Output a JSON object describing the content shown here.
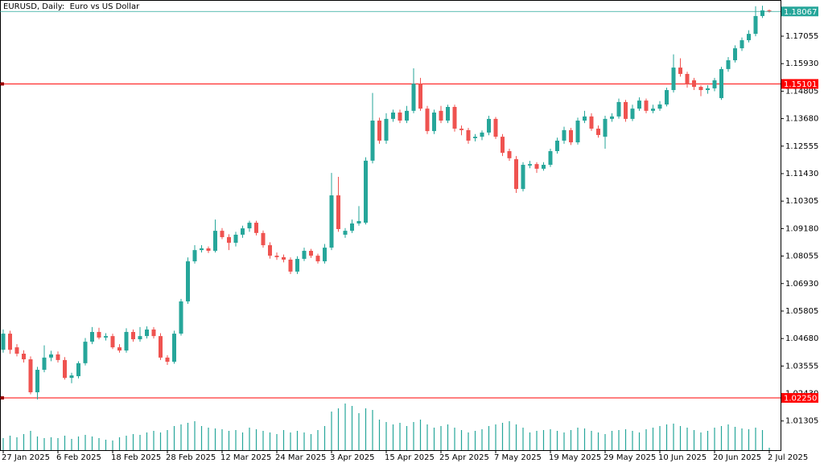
{
  "chart_data": {
    "type": "candlestick",
    "title": "EURUSD, Daily:  Euro vs US Dollar",
    "categories": [
      "27 Jan 2025",
      null,
      null,
      null,
      null,
      null,
      null,
      null,
      "6 Feb 2025",
      null,
      null,
      null,
      null,
      null,
      null,
      null,
      "18 Feb 2025",
      null,
      null,
      null,
      null,
      null,
      null,
      null,
      "28 Feb 2025",
      null,
      null,
      null,
      null,
      null,
      null,
      null,
      "12 Mar 2025",
      null,
      null,
      null,
      null,
      null,
      null,
      null,
      "24 Mar 2025",
      null,
      null,
      null,
      null,
      null,
      null,
      null,
      "3 Apr 2025",
      null,
      null,
      null,
      null,
      null,
      null,
      null,
      "15 Apr 2025",
      null,
      null,
      null,
      null,
      null,
      null,
      null,
      "25 Apr 2025",
      null,
      null,
      null,
      null,
      null,
      null,
      null,
      "7 May 2025",
      null,
      null,
      null,
      null,
      null,
      null,
      null,
      "19 May 2025",
      null,
      null,
      null,
      null,
      null,
      null,
      null,
      "29 May 2025",
      null,
      null,
      null,
      null,
      null,
      null,
      null,
      "10 Jun 2025",
      null,
      null,
      null,
      null,
      null,
      null,
      null,
      "20 Jun 2025",
      null,
      null,
      null,
      null,
      null,
      null,
      null,
      "2 Jul 2025"
    ],
    "open": [
      1.0422,
      1.0488,
      1.0432,
      1.0406,
      1.0383,
      1.0248,
      1.034,
      1.039,
      1.0403,
      1.038,
      1.0307,
      1.0314,
      1.0367,
      1.0455,
      1.0495,
      1.0472,
      1.0478,
      1.0432,
      1.0419,
      1.0495,
      1.0465,
      1.0478,
      1.0505,
      1.0478,
      1.039,
      1.0373,
      1.0488,
      1.062,
      1.0784,
      1.083,
      1.0837,
      1.0827,
      1.0909,
      1.0883,
      1.086,
      1.0893,
      1.0919,
      1.0942,
      1.09,
      1.085,
      1.0807,
      1.0801,
      1.0791,
      1.0742,
      1.0794,
      1.0827,
      1.0807,
      1.0784,
      1.084,
      1.1054,
      1.0893,
      1.0909,
      1.0939,
      1.0942,
      1.1196,
      1.136,
      1.1278,
      1.1367,
      1.1393,
      1.136,
      1.14,
      1.1511,
      1.1409,
      1.1317,
      1.14,
      1.136,
      1.1416,
      1.1327,
      1.1321,
      1.1288,
      1.1294,
      1.1311,
      1.1367,
      1.1294,
      1.1235,
      1.1202,
      1.108,
      1.1176,
      1.1182,
      1.1163,
      1.1179,
      1.1235,
      1.1278,
      1.1321,
      1.1271,
      1.136,
      1.1377,
      1.1327,
      1.1294,
      1.1367,
      1.1377,
      1.1436,
      1.1367,
      1.1409,
      1.1442,
      1.14,
      1.1409,
      1.1426,
      1.1485,
      1.1577,
      1.1551,
      1.1525,
      1.1498,
      1.1485,
      1.1492,
      1.1452,
      1.1571,
      1.1607,
      1.1656,
      1.1689,
      1.1715,
      1.1788,
      1.1811
    ],
    "high": [
      1.0505,
      1.05,
      1.0445,
      1.042,
      1.0395,
      1.0352,
      1.044,
      1.0418,
      1.0415,
      1.0392,
      1.0328,
      1.0375,
      1.047,
      1.0515,
      1.0512,
      1.049,
      1.0488,
      1.0445,
      1.051,
      1.0505,
      1.0515,
      1.0518,
      1.0515,
      1.049,
      1.04,
      1.05,
      1.063,
      1.08,
      1.085,
      1.085,
      1.0845,
      1.0955,
      1.092,
      1.0895,
      1.0905,
      1.093,
      1.095,
      1.095,
      1.091,
      1.0862,
      1.082,
      1.0812,
      1.08,
      1.0805,
      1.084,
      1.0835,
      1.0815,
      1.0855,
      1.1146,
      1.113,
      1.092,
      1.0955,
      1.101,
      1.121,
      1.1473,
      1.1372,
      1.139,
      1.1405,
      1.1405,
      1.142,
      1.1574,
      1.1535,
      1.142,
      1.1405,
      1.142,
      1.1425,
      1.1425,
      1.134,
      1.133,
      1.1305,
      1.132,
      1.138,
      1.1375,
      1.1305,
      1.1245,
      1.1215,
      1.119,
      1.1195,
      1.119,
      1.119,
      1.1245,
      1.129,
      1.1335,
      1.133,
      1.1372,
      1.14,
      1.139,
      1.134,
      1.138,
      1.139,
      1.145,
      1.1445,
      1.1425,
      1.1455,
      1.145,
      1.1425,
      1.144,
      1.1495,
      1.1631,
      1.1615,
      1.156,
      1.1535,
      1.1505,
      1.1505,
      1.1535,
      1.158,
      1.162,
      1.1668,
      1.17,
      1.173,
      1.1828,
      1.183,
      1.1815
    ],
    "low": [
      1.041,
      1.0405,
      1.0395,
      1.037,
      1.024,
      1.0219,
      1.033,
      1.0375,
      1.037,
      1.03,
      1.0285,
      1.0305,
      1.0358,
      1.0445,
      1.0465,
      1.046,
      1.0425,
      1.041,
      1.041,
      1.0455,
      1.0455,
      1.0468,
      1.0468,
      1.038,
      1.036,
      1.0365,
      1.048,
      1.061,
      1.0775,
      1.082,
      1.0818,
      1.082,
      1.0875,
      1.083,
      1.0845,
      1.088,
      1.0905,
      1.089,
      1.084,
      1.0795,
      1.079,
      1.078,
      1.0732,
      1.0732,
      1.0785,
      1.0798,
      1.0775,
      1.0775,
      1.083,
      1.0905,
      1.088,
      1.09,
      1.093,
      1.0935,
      1.1185,
      1.1265,
      1.1265,
      1.1355,
      1.135,
      1.135,
      1.139,
      1.14,
      1.1305,
      1.1305,
      1.135,
      1.135,
      1.1315,
      1.13,
      1.1265,
      1.1275,
      1.128,
      1.13,
      1.1285,
      1.1215,
      1.1195,
      1.1064,
      1.107,
      1.1165,
      1.1146,
      1.1155,
      1.117,
      1.1225,
      1.1265,
      1.126,
      1.1262,
      1.135,
      1.1318,
      1.129,
      1.1245,
      1.1355,
      1.1368,
      1.1355,
      1.1358,
      1.14,
      1.139,
      1.139,
      1.14,
      1.1418,
      1.1475,
      1.154,
      1.1495,
      1.1485,
      1.146,
      1.147,
      1.148,
      1.1445,
      1.156,
      1.1598,
      1.1645,
      1.168,
      1.1705,
      1.178,
      1.1802
    ],
    "close": [
      1.0488,
      1.0422,
      1.0406,
      1.0383,
      1.0248,
      1.034,
      1.039,
      1.0403,
      1.038,
      1.0307,
      1.0317,
      1.0367,
      1.0455,
      1.0495,
      1.0472,
      1.0478,
      1.0432,
      1.0419,
      1.0495,
      1.0465,
      1.0478,
      1.0505,
      1.0478,
      1.039,
      1.0373,
      1.0488,
      1.062,
      1.0784,
      1.083,
      1.0837,
      1.0827,
      1.0909,
      1.0883,
      1.086,
      1.0893,
      1.0919,
      1.0942,
      1.09,
      1.085,
      1.0807,
      1.0801,
      1.0791,
      1.0742,
      1.0794,
      1.0827,
      1.0807,
      1.0784,
      1.084,
      1.1054,
      1.0916,
      1.0909,
      1.0939,
      1.0949,
      1.1196,
      1.136,
      1.1278,
      1.1367,
      1.1393,
      1.136,
      1.14,
      1.1511,
      1.1409,
      1.1317,
      1.1393,
      1.136,
      1.1416,
      1.1327,
      1.1321,
      1.1278,
      1.1294,
      1.1311,
      1.1367,
      1.1294,
      1.1228,
      1.1206,
      1.108,
      1.1179,
      1.1182,
      1.1163,
      1.1179,
      1.1235,
      1.1278,
      1.1321,
      1.1271,
      1.136,
      1.1377,
      1.1327,
      1.1301,
      1.1367,
      1.1377,
      1.1436,
      1.1367,
      1.1409,
      1.1442,
      1.14,
      1.1409,
      1.1426,
      1.1485,
      1.1577,
      1.1551,
      1.1508,
      1.1498,
      1.1485,
      1.1492,
      1.1525,
      1.1571,
      1.1607,
      1.1656,
      1.1689,
      1.1715,
      1.1788,
      1.1811,
      1.18067
    ],
    "volume": [
      15,
      18,
      16,
      20,
      24,
      17,
      15,
      16,
      15,
      18,
      14,
      17,
      19,
      17,
      15,
      13,
      12,
      16,
      18,
      20,
      19,
      22,
      24,
      22,
      25,
      30,
      32,
      34,
      36,
      30,
      28,
      27,
      26,
      24,
      25,
      22,
      28,
      26,
      24,
      22,
      20,
      25,
      22,
      24,
      22,
      20,
      25,
      30,
      48,
      52,
      58,
      55,
      46,
      52,
      50,
      38,
      35,
      32,
      34,
      30,
      35,
      38,
      32,
      28,
      30,
      32,
      28,
      25,
      22,
      24,
      26,
      30,
      32,
      34,
      36,
      32,
      28,
      22,
      24,
      25,
      26,
      24,
      22,
      25,
      28,
      27,
      24,
      22,
      20,
      24,
      25,
      26,
      24,
      22,
      26,
      28,
      30,
      32,
      33,
      30,
      28,
      25,
      22,
      24,
      28,
      30,
      32,
      29,
      27,
      26,
      28,
      25,
      3
    ],
    "ylim": [
      1.00112,
      1.18536
    ],
    "yticks": [
      1.17055,
      {
        "value": 1.1593,
        "label": "1.15930"
      },
      1.14805,
      {
        "value": 1.1368,
        "label": "1.13680"
      },
      1.12555,
      {
        "value": 1.1143,
        "label": "1.11430"
      },
      1.10305,
      {
        "value": 1.0918,
        "label": "1.09180"
      },
      1.08055,
      {
        "value": 1.0693,
        "label": "1.06930"
      },
      1.05805,
      {
        "value": 1.0468,
        "label": "1.04680"
      },
      1.03555,
      {
        "value": 1.0243,
        "label": "1.02430"
      },
      1.01305
    ],
    "levels": [
      {
        "value": 1.15101
      },
      {
        "value": 1.0225,
        "label": "1.02250"
      }
    ],
    "level_color": "#ff0000",
    "up_color": "#26a69a",
    "down_color": "#ef5350",
    "volume_color": "#26a69a",
    "last_price_color": "#26a69a",
    "grid": false
  }
}
